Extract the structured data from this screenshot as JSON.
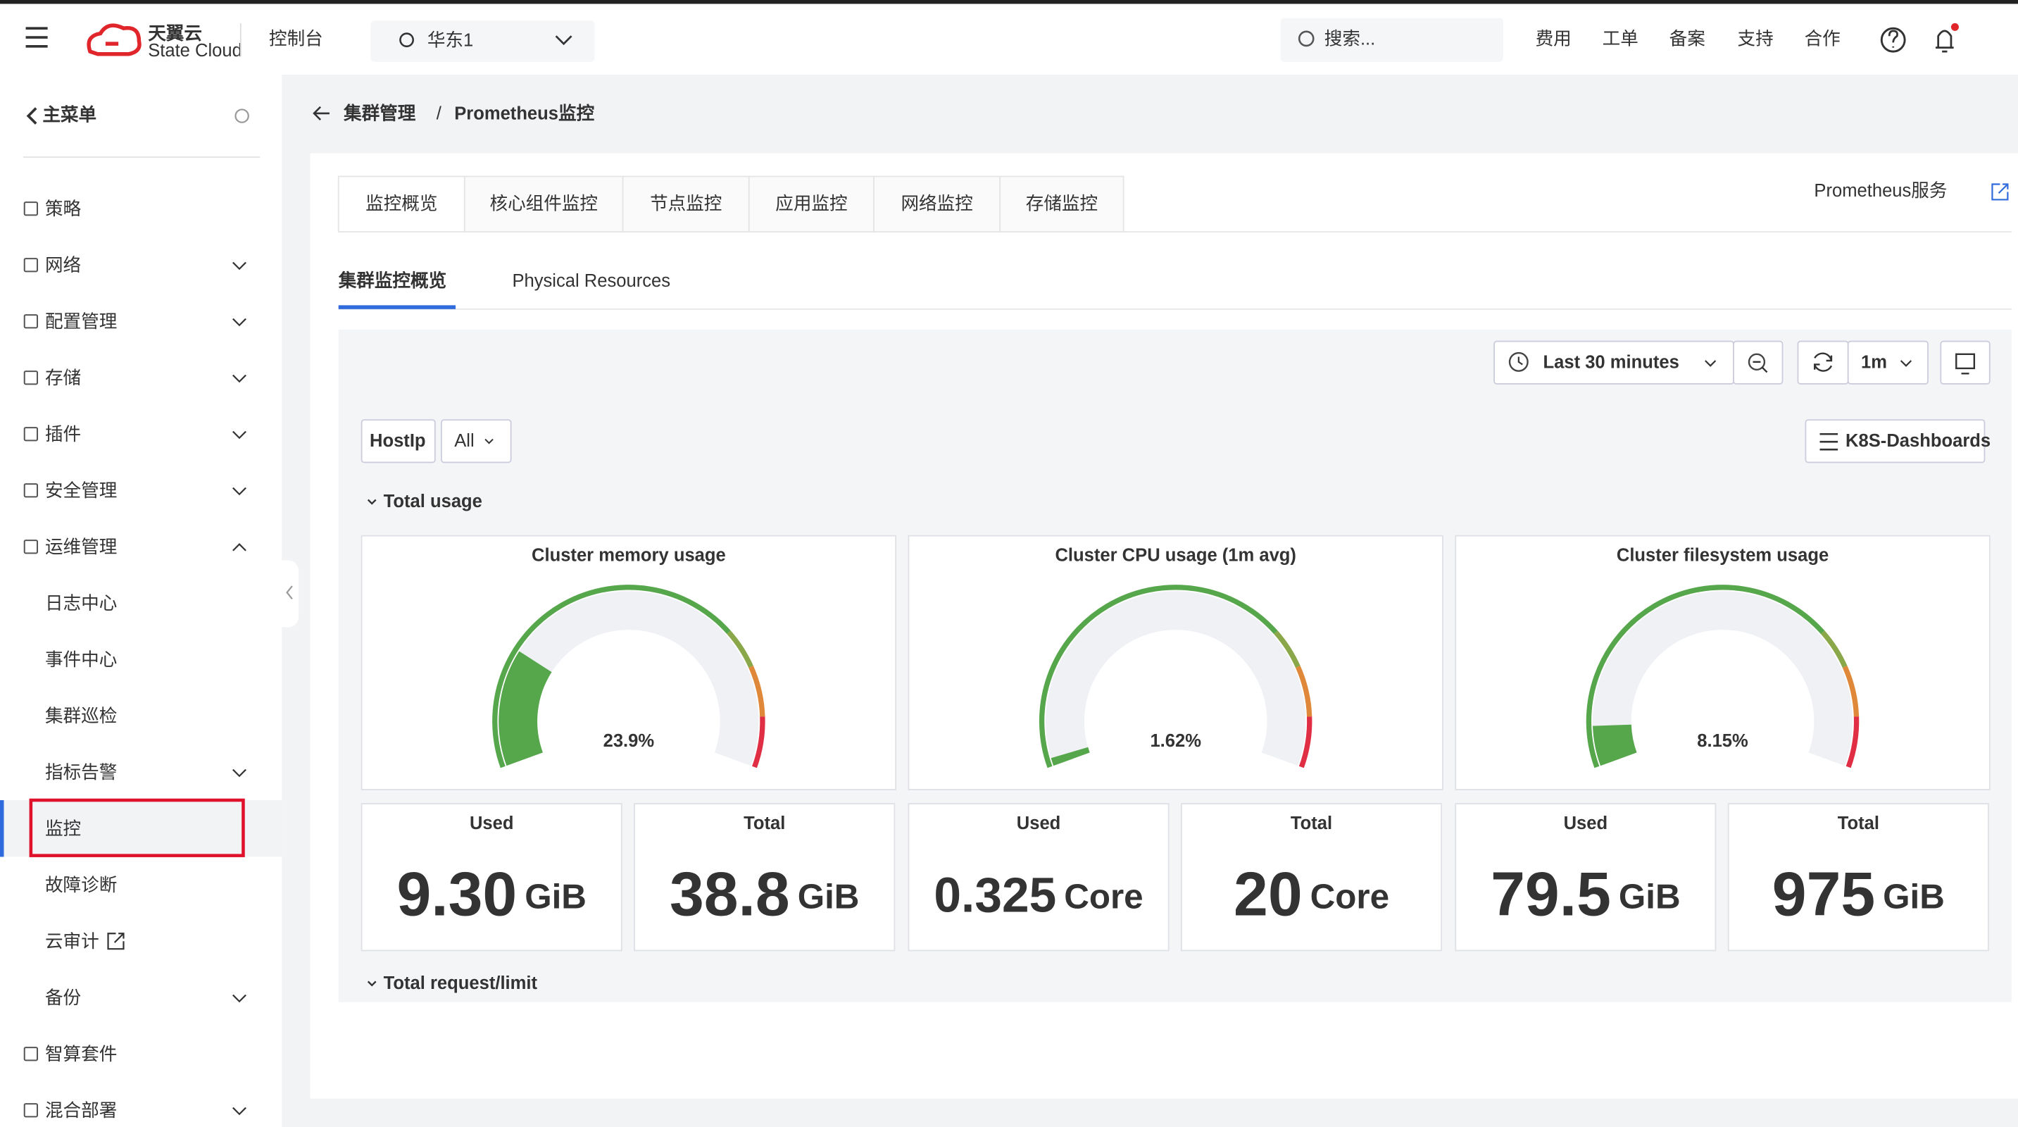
{
  "top_bar": {
    "brand": "天翼云",
    "brand_sub": "State Cloud",
    "console": "控制台",
    "region": "华东1",
    "search_placeholder": "搜索...",
    "links": [
      "费用",
      "工单",
      "备案",
      "支持",
      "合作"
    ]
  },
  "sidebar": {
    "title": "主菜单",
    "items": [
      {
        "label": "策略"
      },
      {
        "label": "网络",
        "chevron": "down"
      },
      {
        "label": "配置管理",
        "chevron": "down"
      },
      {
        "label": "存储",
        "chevron": "down"
      },
      {
        "label": "插件",
        "chevron": "down"
      },
      {
        "label": "安全管理",
        "chevron": "down"
      },
      {
        "label": "运维管理",
        "chevron": "up"
      },
      {
        "label": "日志中心",
        "sub": true
      },
      {
        "label": "事件中心",
        "sub": true
      },
      {
        "label": "集群巡检",
        "sub": true
      },
      {
        "label": "指标告警",
        "sub": true,
        "chevron": "down"
      },
      {
        "label": "监控",
        "sub": true,
        "selected": true
      },
      {
        "label": "故障诊断",
        "sub": true
      },
      {
        "label": "云审计",
        "sub": true,
        "external": true
      },
      {
        "label": "备份",
        "sub": true,
        "chevron": "down"
      },
      {
        "label": "智算套件"
      },
      {
        "label": "混合部署",
        "chevron": "down"
      }
    ]
  },
  "breadcrumb": [
    "集群管理",
    "Prometheus监控"
  ],
  "breadcrumb_separator": "/",
  "tabs": [
    "监控概览",
    "核心组件监控",
    "节点监控",
    "应用监控",
    "网络监控",
    "存储监控"
  ],
  "active_tab": 0,
  "service_link": "Prometheus服务",
  "subtabs": [
    "集群监控概览",
    "Physical Resources"
  ],
  "active_subtab": 0,
  "toolbar": {
    "time_range": "Last 30 minutes",
    "refresh": "1m",
    "variable": "HostIp",
    "variable_value": "All",
    "dashboards": "K8S-Dashboards"
  },
  "rows": [
    "Total usage",
    "Total request/limit"
  ],
  "gauges": [
    {
      "title": "Cluster memory usage",
      "value": 23.9,
      "label": "23.9%",
      "range": [
        0,
        100
      ]
    },
    {
      "title": "Cluster CPU usage (1m avg)",
      "value": 1.62,
      "label": "1.62%",
      "range": [
        0,
        100
      ]
    },
    {
      "title": "Cluster filesystem usage",
      "value": 8.15,
      "label": "8.15%",
      "range": [
        0,
        100
      ]
    }
  ],
  "stats": [
    {
      "title": "Used",
      "value": "9.30",
      "unit": "GiB"
    },
    {
      "title": "Total",
      "value": "38.8",
      "unit": "GiB"
    },
    {
      "title": "Used",
      "value": "0.325",
      "unit": "Core"
    },
    {
      "title": "Total",
      "value": "20",
      "unit": "Core"
    },
    {
      "title": "Used",
      "value": "79.5",
      "unit": "GiB"
    },
    {
      "title": "Total",
      "value": "975",
      "unit": "GiB"
    }
  ]
}
